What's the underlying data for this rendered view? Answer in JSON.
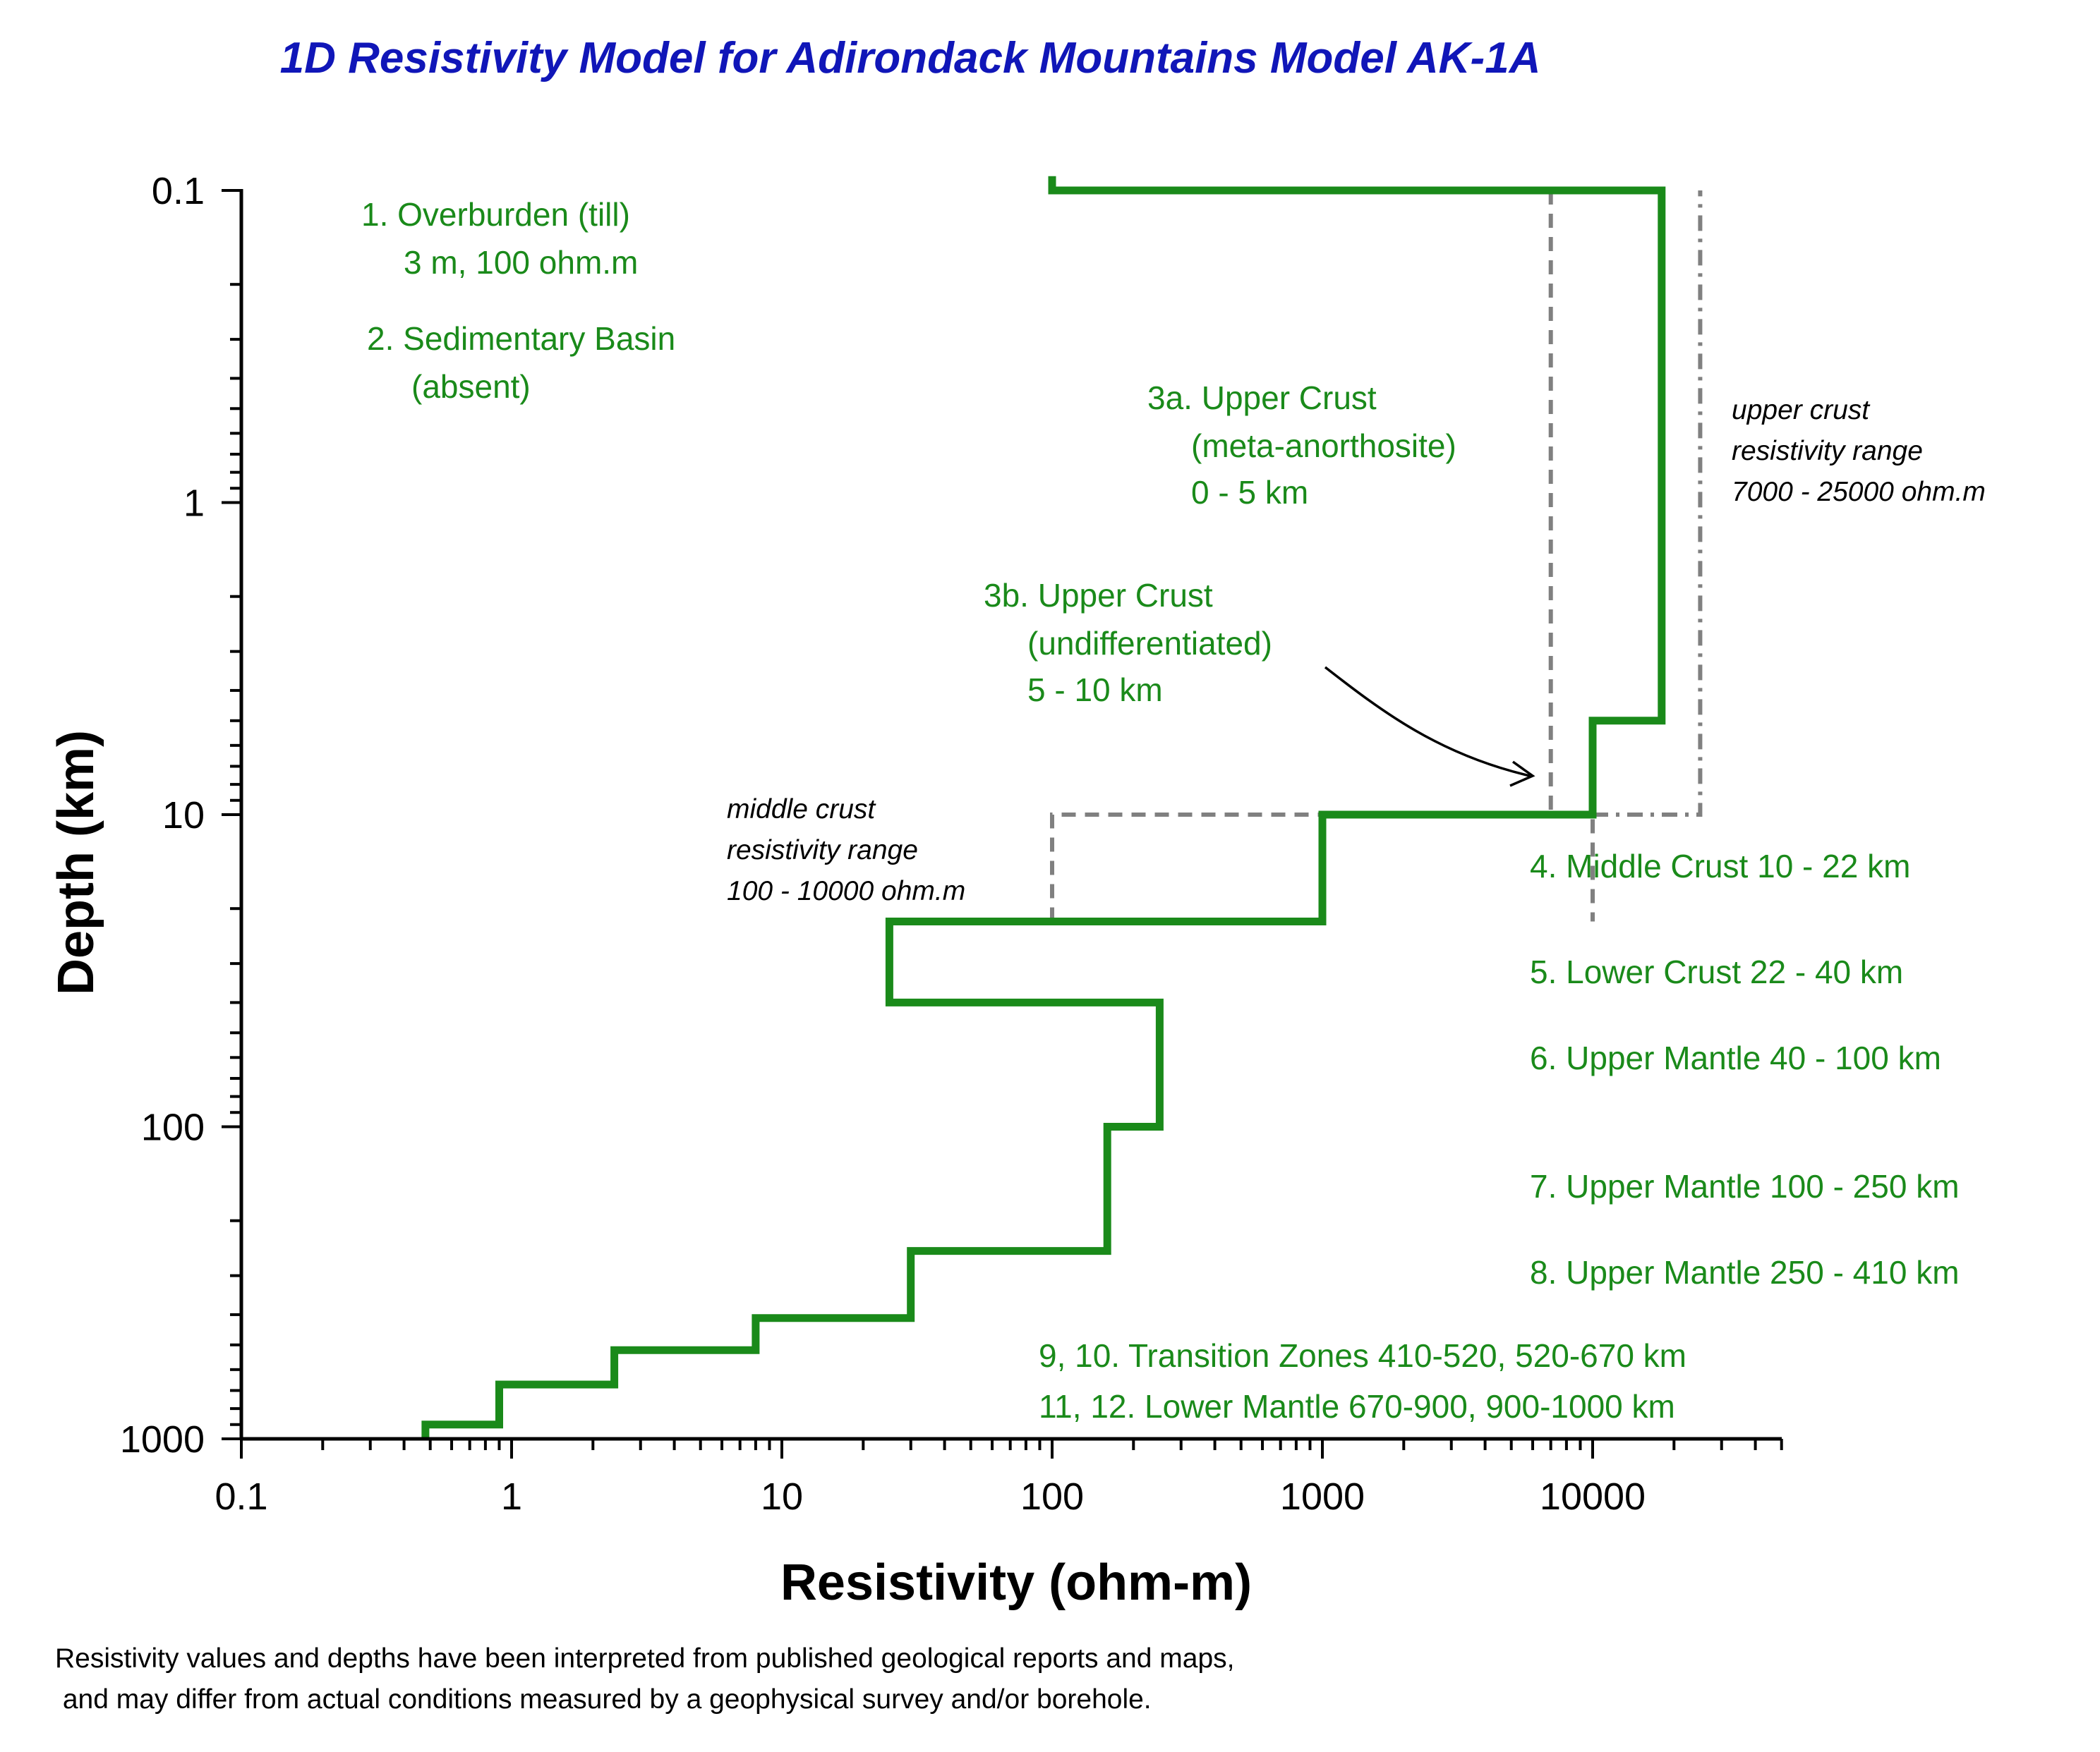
{
  "chart_data": {
    "type": "line",
    "title": "1D Resistivity Model for Adirondack Mountains  Model AK-1A",
    "xlabel": "Resistivity (ohm-m)",
    "ylabel": "Depth (km)",
    "x_scale": "log",
    "y_scale": "log",
    "y_inverted": true,
    "xlim": [
      0.1,
      50000
    ],
    "ylim": [
      0.1,
      1000
    ],
    "x_tick_labels": [
      "0.1",
      "1",
      "10",
      "100",
      "1000",
      "10000"
    ],
    "y_tick_labels": [
      "0.1",
      "1",
      "10",
      "100",
      "1000"
    ],
    "grid": false,
    "series": [
      {
        "kind": "model",
        "color": "#1a8a1a",
        "points": [
          [
            100,
            0.09
          ],
          [
            100,
            0.1
          ],
          [
            18000,
            0.1
          ],
          [
            18000,
            5
          ],
          [
            10000,
            5
          ],
          [
            10000,
            10
          ],
          [
            1000,
            10
          ],
          [
            1000,
            22
          ],
          [
            25,
            22
          ],
          [
            25,
            40
          ],
          [
            250,
            40
          ],
          [
            250,
            100
          ],
          [
            160,
            100
          ],
          [
            160,
            250
          ],
          [
            30,
            250
          ],
          [
            30,
            410
          ],
          [
            8,
            410
          ],
          [
            8,
            520
          ],
          [
            2.4,
            520
          ],
          [
            2.4,
            670
          ],
          [
            0.9,
            670
          ],
          [
            0.9,
            900
          ],
          [
            0.48,
            900
          ],
          [
            0.48,
            1000
          ]
        ]
      },
      {
        "kind": "middle-crust-range",
        "color": "#808080",
        "dash": "dashed",
        "points": [
          [
            100,
            22
          ],
          [
            100,
            10
          ],
          [
            10000,
            10
          ],
          [
            10000,
            22
          ]
        ]
      },
      {
        "kind": "upper-crust-range-min",
        "color": "#808080",
        "dash": "dashed",
        "points": [
          [
            7000,
            0.1
          ],
          [
            7000,
            10
          ]
        ]
      },
      {
        "kind": "upper-crust-range-max",
        "color": "#808080",
        "dash": "dashdot",
        "points": [
          [
            10000,
            10
          ],
          [
            25000,
            10
          ],
          [
            25000,
            0.1
          ]
        ]
      }
    ],
    "annotations": {
      "overburden": [
        "1. Overburden (till)",
        "3 m, 100 ohm.m"
      ],
      "sedimentary": [
        "2. Sedimentary Basin",
        "(absent)"
      ],
      "upper_crust_3a": [
        "3a. Upper Crust",
        "(meta-anorthosite)",
        "0 - 5 km"
      ],
      "upper_crust_3b": [
        "3b. Upper Crust",
        "(undifferentiated)",
        "5 - 10 km"
      ],
      "middle_crust_range": [
        "middle crust",
        "resistivity range",
        "100 - 10000 ohm.m"
      ],
      "upper_crust_range": [
        "upper crust",
        "resistivity range",
        "7000 - 25000 ohm.m"
      ],
      "layers": [
        "4. Middle Crust 10 - 22 km",
        "5. Lower Crust 22 - 40 km",
        "6. Upper Mantle 40 - 100 km",
        "7. Upper Mantle 100 - 250 km",
        "8. Upper Mantle  250 - 410 km",
        "9, 10. Transition Zones 410-520, 520-670 km",
        "11, 12. Lower Mantle 670-900, 900-1000 km"
      ]
    },
    "footnote": [
      "Resistivity values and depths have been interpreted from published geological reports and maps,",
      " and may differ from actual conditions measured by a geophysical survey and/or borehole."
    ],
    "colors": {
      "title": "#1016b8",
      "model": "#1a8a1a",
      "range": "#808080",
      "axis": "#000000"
    }
  }
}
